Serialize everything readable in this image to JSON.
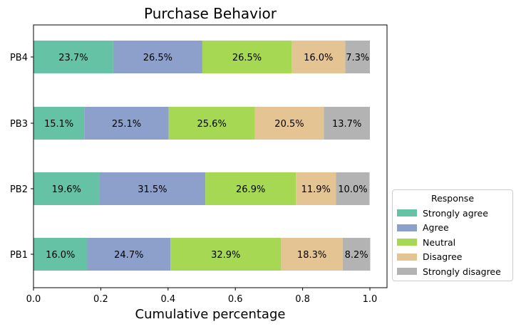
{
  "chart_data": {
    "type": "bar",
    "orientation": "horizontal-stacked",
    "title": "Purchase Behavior",
    "xlabel": "Cumulative percentage",
    "ylabel": "",
    "xlim": [
      0,
      1.05
    ],
    "xticks": [
      "0.0",
      "0.2",
      "0.4",
      "0.6",
      "0.8",
      "1.0"
    ],
    "grid": false,
    "legend_title": "Response",
    "legend_position": "lower-right outside",
    "categories": [
      "PB1",
      "PB2",
      "PB3",
      "PB4"
    ],
    "series": [
      {
        "name": "Strongly agree",
        "color": "#66c2a5",
        "values": [
          0.16,
          0.196,
          0.151,
          0.237
        ],
        "labels": [
          "16.0%",
          "19.6%",
          "15.1%",
          "23.7%"
        ]
      },
      {
        "name": "Agree",
        "color": "#8da0cb",
        "values": [
          0.247,
          0.315,
          0.251,
          0.265
        ],
        "labels": [
          "24.7%",
          "31.5%",
          "25.1%",
          "26.5%"
        ]
      },
      {
        "name": "Neutral",
        "color": "#a6d854",
        "values": [
          0.329,
          0.269,
          0.256,
          0.265
        ],
        "labels": [
          "32.9%",
          "26.9%",
          "25.6%",
          "26.5%"
        ]
      },
      {
        "name": "Disagree",
        "color": "#e5c494",
        "values": [
          0.183,
          0.119,
          0.205,
          0.16
        ],
        "labels": [
          "18.3%",
          "11.9%",
          "20.5%",
          "16.0%"
        ]
      },
      {
        "name": "Strongly disagree",
        "color": "#b3b3b3",
        "values": [
          0.082,
          0.1,
          0.137,
          0.073
        ],
        "labels": [
          "8.2%",
          "10.0%",
          "13.7%",
          "7.3%"
        ]
      }
    ]
  }
}
